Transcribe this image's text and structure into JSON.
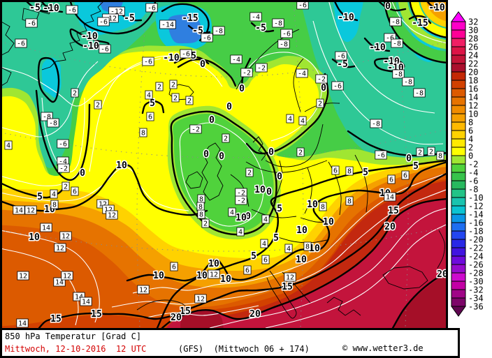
{
  "title_bar": {
    "product": "850 hPa Temperatur [Grad C]",
    "valid": "Mittwoch, 12-10-2016  12 UTC",
    "model": "(GFS)  (Mittwoch 06 + 174)",
    "copyright": "© www.wetter3.de"
  },
  "palette": {
    "teal": "#2EC896",
    "cyan": "#0AC8DC",
    "blue": "#2F7FE0",
    "green": "#46CD46",
    "green2": "#50D23C",
    "lime": "#A0E632",
    "yellow": "#FFFF00",
    "amber": "#FFD200",
    "orange": "#F5A000",
    "orange2": "#E67300",
    "deep": "#DC5A00",
    "redor": "#D24100",
    "red": "#C3280F",
    "crimson": "#C3143C",
    "dark": "#A50F28",
    "date_red": "#D40000",
    "contour": "#000000",
    "minor_contour": "#FFFFFF"
  },
  "colorbar": {
    "unit": "Grad C",
    "labels": [
      32,
      30,
      28,
      26,
      24,
      22,
      20,
      18,
      16,
      14,
      12,
      10,
      8,
      6,
      4,
      2,
      0,
      -2,
      -4,
      -6,
      -8,
      -10,
      -12,
      -14,
      -16,
      -18,
      -20,
      -22,
      -24,
      -26,
      -28,
      -30,
      -32,
      -34,
      -36
    ],
    "cells": [
      "#FF00C8",
      "#FF0096",
      "#F01E64",
      "#DC1446",
      "#C31437",
      "#AA0F2D",
      "#C32805",
      "#D24100",
      "#DC5A00",
      "#E67300",
      "#F08C00",
      "#F5A000",
      "#FFB900",
      "#FFD200",
      "#FFE900",
      "#FFFF00",
      "#A0E632",
      "#50D23C",
      "#37C34B",
      "#28B95F",
      "#23C387",
      "#19C3AF",
      "#0AC3D2",
      "#0A96E6",
      "#1E6EF0",
      "#2346F0",
      "#2828E6",
      "#4114E0",
      "#6E0ADC",
      "#960ACD",
      "#CD0ACD",
      "#C300A5",
      "#A00587",
      "#7D0569"
    ],
    "arrow_top": "#FF00FF",
    "arrow_bottom": "#5F0550"
  },
  "map": {
    "bold_contour_interval_c": 5,
    "fill_interval_c": 2,
    "bold_contour_labels": [
      [
        -5,
        50,
        11
      ],
      [
        -10,
        73,
        12
      ],
      [
        -5,
        185,
        26
      ],
      [
        -15,
        272,
        26
      ],
      [
        -5,
        283,
        44
      ],
      [
        -10,
        128,
        52
      ],
      [
        -10,
        130,
        66
      ],
      [
        -10,
        245,
        83
      ],
      [
        5,
        277,
        80
      ],
      [
        0,
        290,
        92
      ],
      [
        0,
        555,
        9
      ],
      [
        -10,
        495,
        25
      ],
      [
        -15,
        601,
        33
      ],
      [
        -10,
        625,
        11
      ],
      [
        -5,
        373,
        40
      ],
      [
        -10,
        540,
        68
      ],
      [
        -10,
        560,
        88
      ],
      [
        -10,
        566,
        97
      ],
      [
        -5,
        490,
        92
      ],
      [
        0,
        346,
        127
      ],
      [
        0,
        463,
        126
      ],
      [
        0,
        328,
        153
      ],
      [
        0,
        303,
        172
      ],
      [
        0,
        388,
        218
      ],
      [
        0,
        295,
        221
      ],
      [
        0,
        317,
        224
      ],
      [
        0,
        385,
        275
      ],
      [
        0,
        400,
        253
      ],
      [
        0,
        355,
        310
      ],
      [
        0,
        118,
        248
      ],
      [
        0,
        585,
        227
      ],
      [
        5,
        57,
        282
      ],
      [
        5,
        218,
        148
      ],
      [
        5,
        523,
        247
      ],
      [
        5,
        595,
        238
      ],
      [
        5,
        395,
        341
      ],
      [
        5,
        400,
        299
      ],
      [
        5,
        363,
        367
      ],
      [
        10,
        71,
        300
      ],
      [
        10,
        49,
        340
      ],
      [
        10,
        174,
        237
      ],
      [
        10,
        372,
        272
      ],
      [
        10,
        345,
        312
      ],
      [
        10,
        447,
        293
      ],
      [
        10,
        470,
        318
      ],
      [
        10,
        432,
        330
      ],
      [
        10,
        450,
        356
      ],
      [
        10,
        227,
        395
      ],
      [
        10,
        289,
        395
      ],
      [
        10,
        306,
        378
      ],
      [
        10,
        323,
        400
      ],
      [
        10,
        431,
        372
      ],
      [
        10,
        551,
        277
      ],
      [
        15,
        80,
        457
      ],
      [
        15,
        138,
        450
      ],
      [
        15,
        265,
        446
      ],
      [
        15,
        411,
        411
      ],
      [
        15,
        563,
        302
      ],
      [
        20,
        252,
        455
      ],
      [
        20,
        365,
        450
      ],
      [
        20,
        558,
        325
      ],
      [
        20,
        633,
        393
      ]
    ],
    "station_values": [
      [
        -6,
        103,
        14
      ],
      [
        -12,
        167,
        16
      ],
      [
        -12,
        158,
        26
      ],
      [
        -6,
        217,
        11
      ],
      [
        -14,
        240,
        35
      ],
      [
        -8,
        313,
        44
      ],
      [
        -6,
        296,
        54
      ],
      [
        -6,
        45,
        33
      ],
      [
        -6,
        30,
        62
      ],
      [
        -6,
        148,
        31
      ],
      [
        -6,
        150,
        70
      ],
      [
        -8,
        67,
        167
      ],
      [
        -8,
        76,
        176
      ],
      [
        -6,
        90,
        206
      ],
      [
        -4,
        90,
        231
      ],
      [
        -2,
        91,
        241
      ],
      [
        4,
        12,
        208
      ],
      [
        2,
        107,
        133
      ],
      [
        2,
        140,
        150
      ],
      [
        2,
        94,
        267
      ],
      [
        6,
        107,
        274
      ],
      [
        8,
        205,
        190
      ],
      [
        8,
        288,
        285
      ],
      [
        8,
        287,
        296
      ],
      [
        8,
        288,
        307
      ],
      [
        -6,
        266,
        77
      ],
      [
        -6,
        212,
        88
      ],
      [
        2,
        228,
        124
      ],
      [
        2,
        248,
        121
      ],
      [
        4,
        213,
        136
      ],
      [
        2,
        251,
        140
      ],
      [
        2,
        271,
        144
      ],
      [
        6,
        215,
        167
      ],
      [
        -2,
        280,
        185
      ],
      [
        -4,
        338,
        85
      ],
      [
        -2,
        353,
        104
      ],
      [
        2,
        323,
        198
      ],
      [
        -2,
        345,
        276
      ],
      [
        -2,
        345,
        287
      ],
      [
        2,
        294,
        320
      ],
      [
        -4,
        366,
        24
      ],
      [
        -8,
        398,
        33
      ],
      [
        -6,
        410,
        48
      ],
      [
        -8,
        406,
        63
      ],
      [
        -6,
        433,
        7
      ],
      [
        -8,
        566,
        31
      ],
      [
        -6,
        558,
        54
      ],
      [
        -8,
        568,
        62
      ],
      [
        -8,
        570,
        106
      ],
      [
        -8,
        584,
        117
      ],
      [
        -8,
        600,
        133
      ],
      [
        -8,
        538,
        177
      ],
      [
        -6,
        488,
        80
      ],
      [
        -6,
        483,
        123
      ],
      [
        -2,
        374,
        97
      ],
      [
        -4,
        432,
        105
      ],
      [
        -2,
        460,
        113
      ],
      [
        2,
        458,
        148
      ],
      [
        4,
        415,
        170
      ],
      [
        4,
        433,
        173
      ],
      [
        2,
        430,
        218
      ],
      [
        -6,
        545,
        222
      ],
      [
        2,
        601,
        218
      ],
      [
        2,
        617,
        217
      ],
      [
        8,
        630,
        223
      ],
      [
        14,
        27,
        301
      ],
      [
        12,
        44,
        301
      ],
      [
        8,
        78,
        293
      ],
      [
        4,
        77,
        278
      ],
      [
        12,
        147,
        292
      ],
      [
        12,
        155,
        300
      ],
      [
        12,
        160,
        308
      ],
      [
        14,
        66,
        326
      ],
      [
        12,
        94,
        338
      ],
      [
        12,
        86,
        355
      ],
      [
        12,
        33,
        395
      ],
      [
        14,
        85,
        404
      ],
      [
        14,
        113,
        425
      ],
      [
        14,
        123,
        432
      ],
      [
        12,
        96,
        395
      ],
      [
        14,
        32,
        463
      ],
      [
        12,
        205,
        415
      ],
      [
        12,
        287,
        428
      ],
      [
        6,
        249,
        382
      ],
      [
        12,
        306,
        393
      ],
      [
        6,
        380,
        372
      ],
      [
        2,
        357,
        247
      ],
      [
        4,
        332,
        304
      ],
      [
        4,
        344,
        332
      ],
      [
        4,
        380,
        314
      ],
      [
        4,
        378,
        349
      ],
      [
        4,
        413,
        356
      ],
      [
        6,
        354,
        387
      ],
      [
        8,
        440,
        353
      ],
      [
        8,
        462,
        296
      ],
      [
        8,
        500,
        288
      ],
      [
        6,
        560,
        257
      ],
      [
        6,
        580,
        251
      ],
      [
        14,
        558,
        282
      ],
      [
        12,
        415,
        397
      ],
      [
        8,
        500,
        245
      ],
      [
        6,
        480,
        244
      ]
    ]
  }
}
